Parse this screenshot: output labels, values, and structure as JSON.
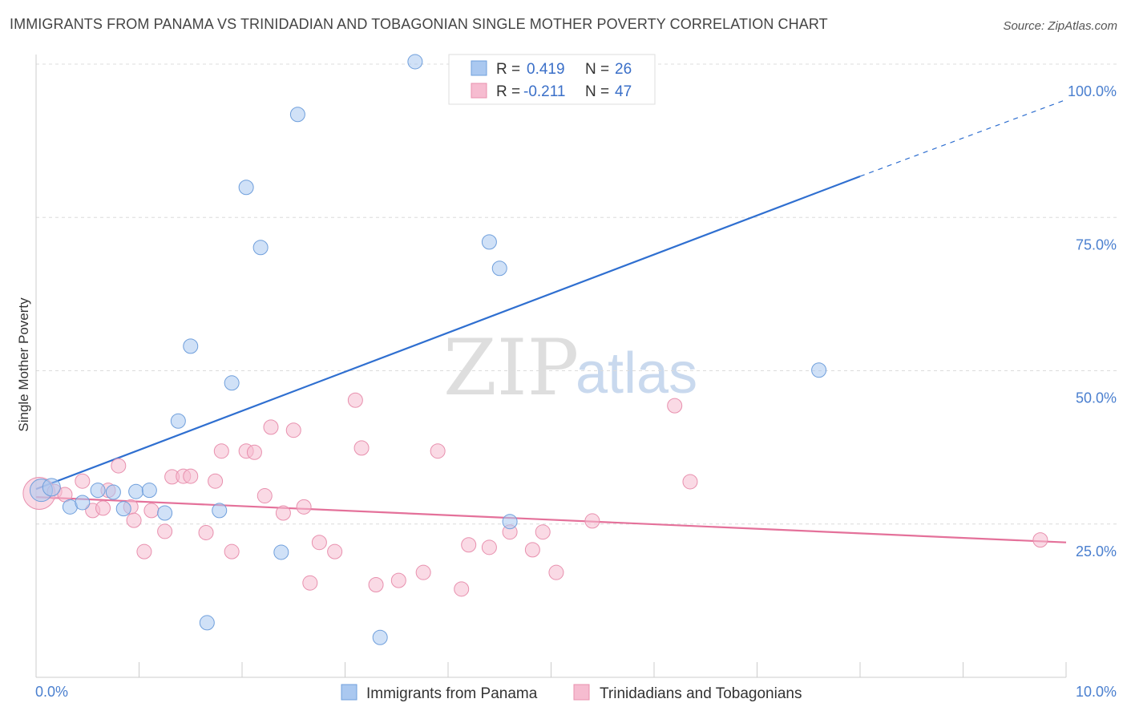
{
  "title": "IMMIGRANTS FROM PANAMA VS TRINIDADIAN AND TOBAGONIAN SINGLE MOTHER POVERTY CORRELATION CHART",
  "source": "Source: ZipAtlas.com",
  "watermark": {
    "zip": "ZIP",
    "atlas": "atlas"
  },
  "colors": {
    "blue_fill": "#aac8f0",
    "blue_stroke": "#6f9fdc",
    "blue_line": "#2f6fd0",
    "pink_fill": "#f6bcd0",
    "pink_stroke": "#e890ae",
    "pink_line": "#e4719a"
  },
  "legend": {
    "r_label": "R =",
    "n_label": "N =",
    "rows": [
      {
        "r": "0.419",
        "n": "26"
      },
      {
        "r": "-0.211",
        "n": "47"
      }
    ]
  },
  "chart_data": {
    "type": "scatter",
    "title": "IMMIGRANTS FROM PANAMA VS TRINIDADIAN AND TOBAGONIAN SINGLE MOTHER POVERTY CORRELATION CHART",
    "xlabel": "",
    "ylabel": "Single Mother Poverty",
    "xlim": [
      0,
      10
    ],
    "ylim": [
      0,
      105
    ],
    "x_tick_labels": [
      "0.0%",
      "10.0%"
    ],
    "y_ticks": [
      25,
      50,
      75,
      100
    ],
    "y_tick_labels": [
      "25.0%",
      "50.0%",
      "75.0%",
      "100.0%"
    ],
    "grid": "horizontal dashed",
    "legend_placement": "top-center",
    "series": [
      {
        "name": "Immigrants from Panama",
        "color": "#aac8f0",
        "r": 0.419,
        "n": 26,
        "trend": {
          "x0": 0,
          "y0": 30.7,
          "x1": 8.0,
          "y1": 81.7,
          "dash_to_x": 10.0,
          "dash_to_y": 94.2
        },
        "points": [
          [
            0.05,
            30.5,
            14
          ],
          [
            0.15,
            31.0,
            11
          ],
          [
            0.33,
            27.8,
            9
          ],
          [
            0.45,
            28.5,
            9
          ],
          [
            0.6,
            30.5,
            9
          ],
          [
            0.75,
            30.2,
            9
          ],
          [
            0.85,
            27.5,
            9
          ],
          [
            0.97,
            30.3,
            9
          ],
          [
            1.1,
            30.5,
            9
          ],
          [
            1.25,
            26.8,
            9
          ],
          [
            1.38,
            41.8,
            9
          ],
          [
            1.5,
            54.0,
            9
          ],
          [
            1.66,
            8.9,
            9
          ],
          [
            1.78,
            27.2,
            9
          ],
          [
            1.9,
            48.0,
            9
          ],
          [
            2.04,
            79.9,
            9
          ],
          [
            2.18,
            70.1,
            9
          ],
          [
            2.38,
            20.4,
            9
          ],
          [
            2.54,
            91.8,
            9
          ],
          [
            3.34,
            6.5,
            9
          ],
          [
            3.68,
            100.4,
            9
          ],
          [
            4.2,
            100.4,
            9
          ],
          [
            4.4,
            71.0,
            9
          ],
          [
            4.5,
            66.7,
            9
          ],
          [
            4.6,
            25.4,
            9
          ],
          [
            7.6,
            50.1,
            9
          ]
        ]
      },
      {
        "name": "Trinidadians and Tobagonians",
        "color": "#f6bcd0",
        "r": -0.211,
        "n": 47,
        "trend": {
          "x0": 0,
          "y0": 29.4,
          "x1": 10.0,
          "y1": 22.0
        },
        "points": [
          [
            0.03,
            30.0,
            20
          ],
          [
            0.18,
            30.3,
            9
          ],
          [
            0.28,
            29.8,
            9
          ],
          [
            0.45,
            32.0,
            9
          ],
          [
            0.55,
            27.2,
            9
          ],
          [
            0.7,
            30.5,
            9
          ],
          [
            0.8,
            34.5,
            9
          ],
          [
            0.92,
            27.8,
            9
          ],
          [
            0.95,
            25.6,
            9
          ],
          [
            1.05,
            20.5,
            9
          ],
          [
            1.12,
            27.2,
            9
          ],
          [
            1.25,
            23.8,
            9
          ],
          [
            1.32,
            32.7,
            9
          ],
          [
            1.43,
            32.8,
            9
          ],
          [
            1.5,
            32.8,
            9
          ],
          [
            1.65,
            23.6,
            9
          ],
          [
            1.74,
            32.0,
            9
          ],
          [
            1.8,
            36.9,
            9
          ],
          [
            1.9,
            20.5,
            9
          ],
          [
            2.04,
            36.9,
            9
          ],
          [
            2.12,
            36.7,
            9
          ],
          [
            2.22,
            29.6,
            9
          ],
          [
            2.28,
            40.8,
            9
          ],
          [
            2.4,
            26.8,
            9
          ],
          [
            2.5,
            40.3,
            9
          ],
          [
            2.6,
            27.8,
            9
          ],
          [
            2.66,
            15.4,
            9
          ],
          [
            2.75,
            22.0,
            9
          ],
          [
            2.9,
            20.5,
            9
          ],
          [
            3.1,
            45.2,
            9
          ],
          [
            3.16,
            37.4,
            9
          ],
          [
            3.3,
            15.1,
            9
          ],
          [
            3.52,
            15.8,
            9
          ],
          [
            3.76,
            17.1,
            9
          ],
          [
            3.9,
            36.9,
            9
          ],
          [
            4.13,
            14.4,
            9
          ],
          [
            4.2,
            21.6,
            9
          ],
          [
            4.4,
            21.2,
            9
          ],
          [
            4.6,
            23.7,
            9
          ],
          [
            4.82,
            20.8,
            9
          ],
          [
            4.92,
            23.7,
            9
          ],
          [
            5.05,
            17.1,
            9
          ],
          [
            5.4,
            25.5,
            9
          ],
          [
            6.2,
            44.3,
            9
          ],
          [
            6.35,
            31.9,
            9
          ],
          [
            9.75,
            22.4,
            9
          ],
          [
            0.65,
            27.6,
            9
          ]
        ]
      }
    ]
  }
}
